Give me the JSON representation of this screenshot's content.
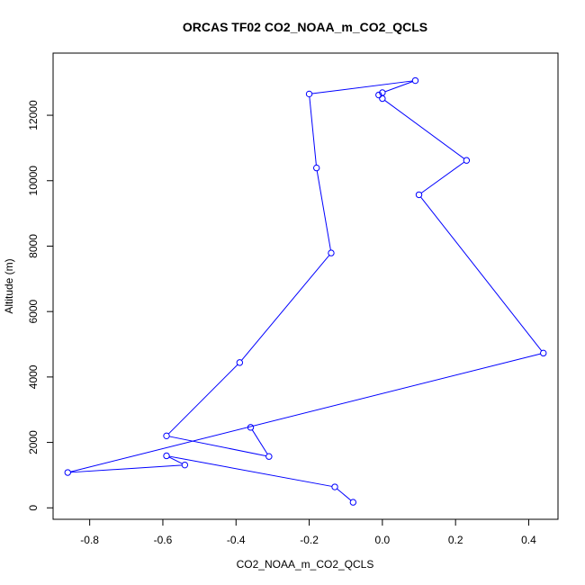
{
  "chart_data": {
    "type": "line",
    "title": "ORCAS TF02 CO2_NOAA_m_CO2_QCLS",
    "xlabel": "CO2_NOAA_m_CO2_QCLS",
    "ylabel": "Altitude (m)",
    "xlim": [
      -0.9,
      0.48
    ],
    "ylim": [
      -350,
      13900
    ],
    "xticks": [
      -0.8,
      -0.6,
      -0.4,
      -0.2,
      0.0,
      0.2,
      0.4
    ],
    "xtick_labels": [
      "-0.8",
      "-0.6",
      "-0.4",
      "-0.2",
      "0.0",
      "0.2",
      "0.4"
    ],
    "yticks": [
      0,
      2000,
      4000,
      6000,
      8000,
      10000,
      12000
    ],
    "ytick_labels": [
      "0",
      "2000",
      "4000",
      "6000",
      "8000",
      "10000",
      "12000"
    ],
    "grid": false,
    "line_style": "lines with open circle markers",
    "colors": {
      "series": "#0000ff",
      "axes": "#000000",
      "background": "#ffffff"
    },
    "series": [
      {
        "x": [
          -0.08,
          -0.13,
          -0.59,
          -0.54,
          -0.86,
          0.44,
          0.1,
          0.23,
          0.0,
          -0.01,
          0.0,
          0.09,
          -0.2,
          -0.18,
          -0.14,
          -0.39,
          -0.59,
          -0.31,
          -0.36
        ],
        "y": [
          170,
          640,
          1590,
          1310,
          1080,
          4730,
          9570,
          10620,
          12510,
          12620,
          12690,
          13060,
          12650,
          10390,
          7790,
          4440,
          2200,
          1570,
          2460
        ]
      }
    ]
  }
}
